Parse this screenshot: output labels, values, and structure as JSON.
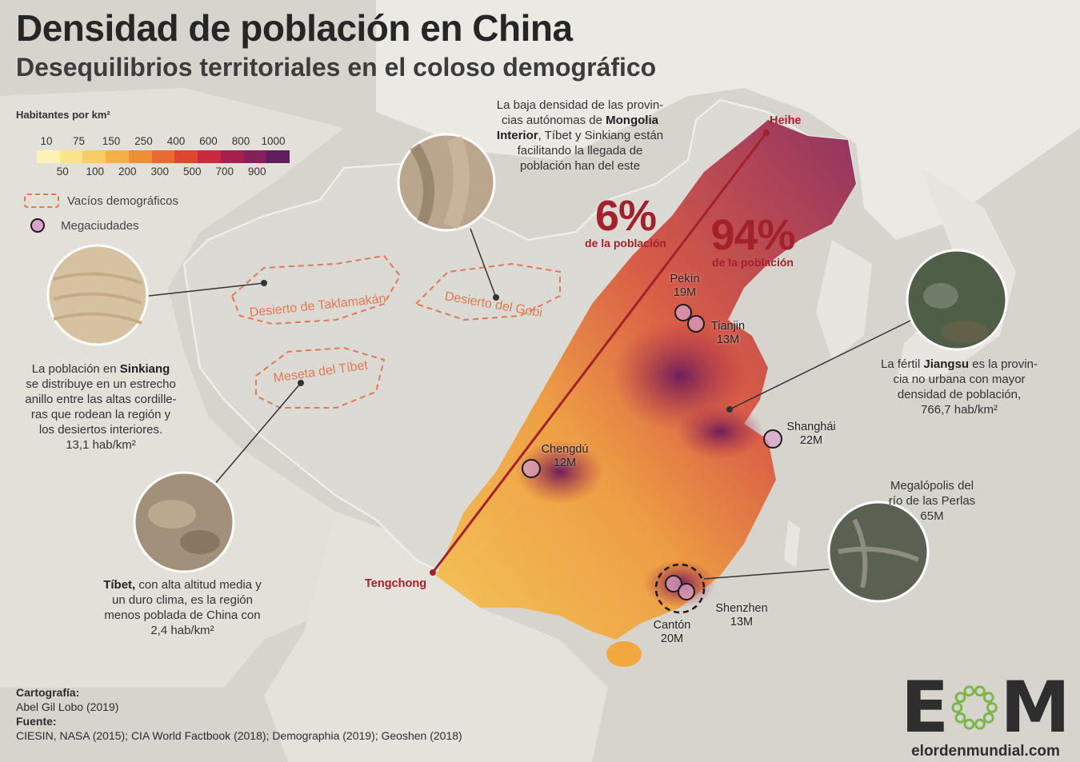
{
  "title": "Densidad de población en China",
  "subtitle": "Desequilibrios territoriales en el coloso demográfico",
  "legend": {
    "title": "Habitantes por km²",
    "ticks_top": [
      "10",
      "75",
      "150",
      "250",
      "400",
      "600",
      "800",
      "1000"
    ],
    "ticks_bottom": [
      "50",
      "100",
      "200",
      "300",
      "500",
      "700",
      "900"
    ],
    "ramp_colors": [
      "#fbf3b4",
      "#f9e38b",
      "#f6cd62",
      "#f3b247",
      "#ee8f34",
      "#e86a2f",
      "#de4631",
      "#c8293c",
      "#a81f4f",
      "#86205a",
      "#5e1e5c"
    ],
    "vacios_label": "Vacíos demográficos",
    "vacios_color": "#de7a55",
    "megaciudades_label": "Megaciudades",
    "mega_color": "#d8a2cd"
  },
  "line": {
    "start": "Heihe",
    "end": "Tengchong",
    "color": "#a3212b",
    "west": {
      "value": "6%",
      "label": "de la población"
    },
    "east": {
      "value": "94%",
      "label": "de la población"
    }
  },
  "deserts": [
    "Desierto de Taklamakán",
    "Desierto del Gobi",
    "Meseta del Tíbet"
  ],
  "cities": [
    {
      "name": "Pekín",
      "pop": "19M"
    },
    {
      "name": "Tianjin",
      "pop": "13M"
    },
    {
      "name": "Shanghái",
      "pop": "22M"
    },
    {
      "name": "Chengdú",
      "pop": "12M"
    },
    {
      "name": "Cantón",
      "pop": "20M"
    },
    {
      "name": "Shenzhen",
      "pop": "13M"
    }
  ],
  "notes": {
    "gobi": {
      "t1": "La baja densidad de las provin-",
      "t2": "cias autónomas de ",
      "b1": "Mongolia",
      "b2": "Interior",
      "t3": ", Tíbet y Sinkiang están",
      "t4": "facilitando la llegada de",
      "t5": "población han del este"
    },
    "sinkiang": {
      "t1": "La población en ",
      "b1": "Sinkiang",
      "t2": "se distribuye en un estrecho",
      "t3": "anillo entre las altas cordille-",
      "t4": "ras que rodean la región y",
      "t5": "los desiertos interiores.",
      "t6": "13,1 hab/km²"
    },
    "tibet": {
      "b1": "Tíbet,",
      "t1": " con alta altitud media y",
      "t2": "un duro clima, es la región",
      "t3": "menos poblada de China con",
      "t4": "2,4 hab/km²"
    },
    "jiangsu": {
      "t1": "La fértil ",
      "b1": "Jiangsu",
      "t2": " es la provin-",
      "t3": "cia no urbana con mayor",
      "t4": "densidad de población,",
      "t5": "766,7 hab/km²"
    },
    "perlas": {
      "t1": "Megalópolis del",
      "t2": "río de las Perlas",
      "t3": "65M"
    }
  },
  "credits": {
    "carto_label": "Cartografía:",
    "carto": "Abel Gil Lobo (2019)",
    "fuente_label": "Fuente:",
    "fuente": "CIESIN, NASA (2015); CIA World Factbook (2018); Demographia (2019); Geoshen (2018)"
  },
  "logo": {
    "l1": "E",
    "l2": "M",
    "url": "elordenmundial.com",
    "ring_color": "#7ab648"
  }
}
